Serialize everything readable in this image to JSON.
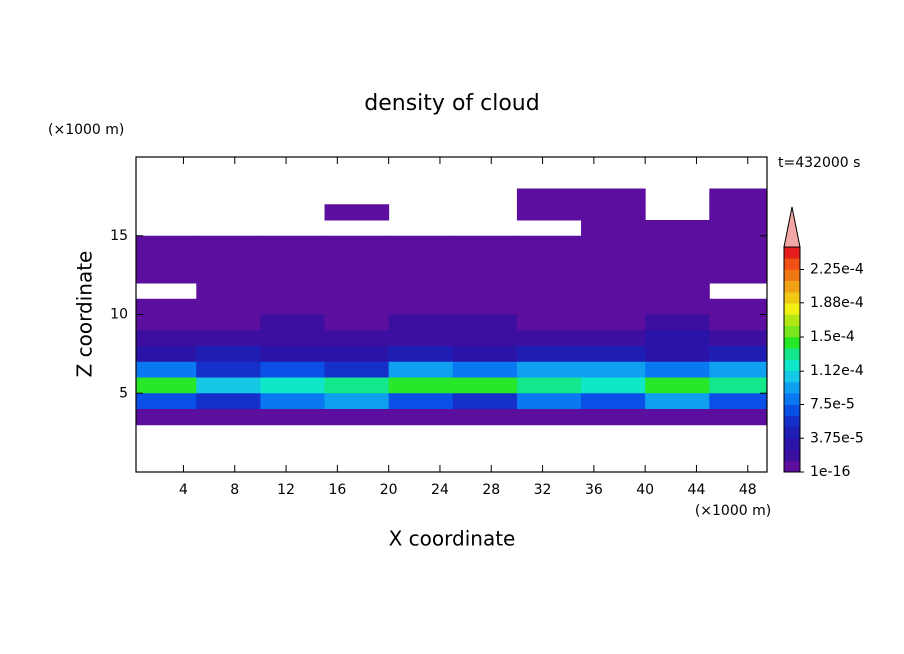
{
  "chart_data": {
    "type": "contour",
    "title": "density of cloud",
    "x_label": "X coordinate",
    "y_label": "Z coordinate",
    "x_unit": "(×1000 m)",
    "y_unit": "(×1000 m)",
    "annotation": "t=432000 s",
    "xlim": [
      0.3,
      49.5
    ],
    "ylim": [
      0,
      20
    ],
    "xticks": [
      4,
      8,
      12,
      16,
      20,
      24,
      28,
      32,
      36,
      40,
      44,
      48
    ],
    "yticks": [
      5,
      10,
      15
    ],
    "x": [
      2.5,
      7.5,
      12.5,
      17.5,
      22.5,
      27.5,
      32.5,
      37.5,
      42.5,
      47.5
    ],
    "z": [
      17.5,
      16.5,
      15.5,
      14.5,
      13.5,
      12.5,
      11.5,
      10.5,
      9.5,
      8.5,
      7.5,
      6.5,
      5.5,
      4.5,
      3.5
    ],
    "field": [
      [
        0,
        0,
        0,
        0,
        0,
        0,
        1e-06,
        1e-06,
        0,
        1e-06
      ],
      [
        0,
        0,
        0,
        1e-06,
        0,
        0,
        1e-06,
        1e-06,
        0,
        1e-06
      ],
      [
        0,
        0,
        0,
        0,
        0,
        0,
        0,
        1e-06,
        1e-06,
        1e-06
      ],
      [
        1e-06,
        1e-06,
        1e-06,
        1e-06,
        1e-06,
        1e-06,
        1e-06,
        1e-06,
        1e-06,
        1e-06
      ],
      [
        1e-06,
        1e-06,
        1e-06,
        1e-06,
        1e-06,
        1e-06,
        1e-06,
        1e-06,
        1e-06,
        1e-06
      ],
      [
        1e-06,
        1e-06,
        1e-06,
        1e-06,
        1e-06,
        1e-06,
        1e-06,
        1e-06,
        1e-06,
        1e-06
      ],
      [
        0,
        1e-06,
        1e-06,
        1e-06,
        1e-06,
        1e-06,
        1e-06,
        1e-06,
        1e-06,
        0
      ],
      [
        1e-06,
        1e-06,
        1e-06,
        1e-06,
        1e-06,
        1e-06,
        1e-06,
        1e-06,
        1e-06,
        1e-06
      ],
      [
        1e-06,
        1e-06,
        1.5e-05,
        1e-06,
        1.5e-05,
        1.5e-05,
        1e-06,
        1e-06,
        1.5e-05,
        1e-06
      ],
      [
        2e-05,
        1.5e-05,
        2e-05,
        2e-05,
        1.5e-05,
        2e-05,
        2e-05,
        1.5e-05,
        3e-05,
        2e-05
      ],
      [
        3e-05,
        4e-05,
        3e-05,
        3e-05,
        4e-05,
        3e-05,
        4e-05,
        4e-05,
        3e-05,
        4e-05
      ],
      [
        8e-05,
        6e-05,
        7e-05,
        6e-05,
        9e-05,
        8e-05,
        0.0001,
        9e-05,
        8e-05,
        0.0001
      ],
      [
        0.00014,
        0.00011,
        0.00012,
        0.00013,
        0.00015,
        0.00014,
        0.00013,
        0.00012,
        0.00015,
        0.00013
      ],
      [
        7e-05,
        6e-05,
        8e-05,
        9e-05,
        7e-05,
        6e-05,
        8e-05,
        7e-05,
        9e-05,
        7e-05
      ],
      [
        1e-06,
        1e-06,
        1e-06,
        1e-06,
        1e-06,
        1e-06,
        1e-06,
        1e-06,
        1e-06,
        1e-06
      ]
    ],
    "clim": [
      1e-16,
      0.00025
    ],
    "colors": [
      "#5c0f9e",
      "#3d0fa0",
      "#2a14a8",
      "#1e1eb4",
      "#1430c8",
      "#0a50e6",
      "#0a78f0",
      "#10a0f0",
      "#14c8e6",
      "#10e6c8",
      "#14e68c",
      "#28e628",
      "#78e61e",
      "#b4e614",
      "#f0f014",
      "#f0c814",
      "#f0a014",
      "#f07814",
      "#f05014",
      "#e61e1e"
    ],
    "extend_color": "#f4a6a6",
    "cticks": [
      {
        "value": 1e-16,
        "label": "1e-16"
      },
      {
        "value": 3.75e-05,
        "label": "3.75e-5"
      },
      {
        "value": 7.5e-05,
        "label": "7.5e-5"
      },
      {
        "value": 0.000112,
        "label": "1.12e-4"
      },
      {
        "value": 0.00015,
        "label": "1.5e-4"
      },
      {
        "value": 0.000188,
        "label": "1.88e-4"
      },
      {
        "value": 0.000225,
        "label": "2.25e-4"
      }
    ]
  }
}
